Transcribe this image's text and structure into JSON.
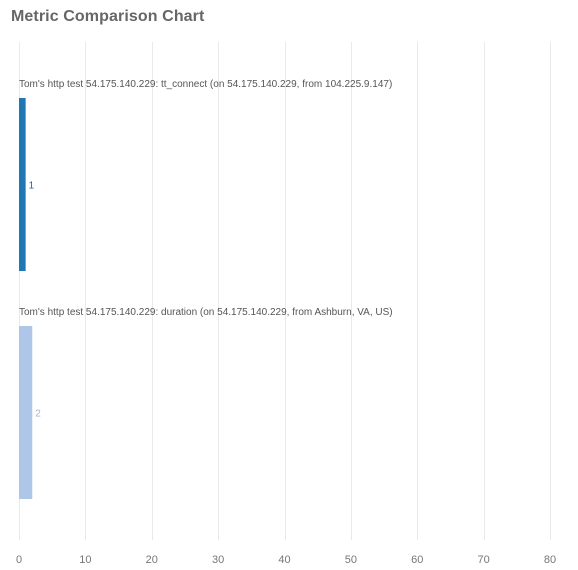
{
  "page": {
    "title": "Metric Comparison Chart"
  },
  "chart_data": {
    "type": "bar",
    "orientation": "horizontal",
    "title": "Metric Comparison Chart",
    "xlabel": "",
    "ylabel": "",
    "xlim": [
      0,
      80
    ],
    "x_ticks": [
      0,
      10,
      20,
      30,
      40,
      50,
      60,
      70,
      80
    ],
    "grid": true,
    "series": [
      {
        "name": "Tom's http test 54.175.140.229: tt_connect (on 54.175.140.229, from 104.225.9.147)",
        "value": 1,
        "label": "1",
        "color": "#1f77b4",
        "label_color": "#1f5fa8"
      },
      {
        "name": "Tom's http test 54.175.140.229: duration (on 54.175.140.229, from Ashburn, VA, US)",
        "value": 2,
        "label": "2",
        "color": "#aec7e8",
        "label_color": "#9fb8d8"
      }
    ]
  }
}
